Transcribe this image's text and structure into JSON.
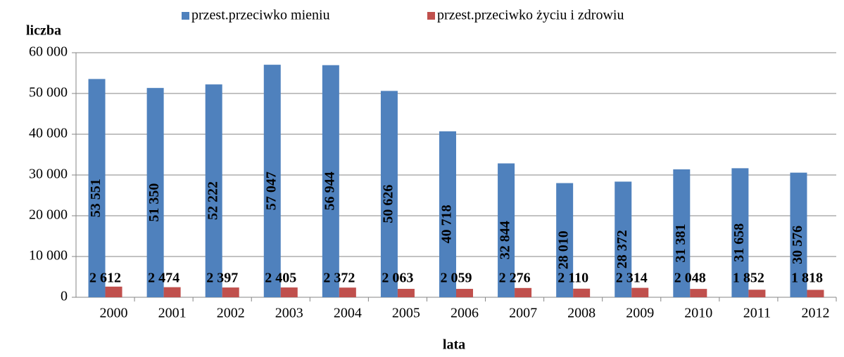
{
  "chart_data": {
    "type": "bar",
    "y_label": "liczba",
    "x_label": "lata",
    "categories": [
      "2000",
      "2001",
      "2002",
      "2003",
      "2004",
      "2005",
      "2006",
      "2007",
      "2008",
      "2009",
      "2010",
      "2011",
      "2012"
    ],
    "series": [
      {
        "name": "przest.przeciwko mieniu",
        "color": "#4f81bd",
        "values": [
          53551,
          51350,
          52222,
          57047,
          56944,
          50626,
          40718,
          32844,
          28010,
          28372,
          31381,
          31658,
          30576
        ],
        "value_labels": [
          "53 551",
          "51 350",
          "52 222",
          "57 047",
          "56 944",
          "50 626",
          "40 718",
          "32 844",
          "28 010",
          "28 372",
          "31 381",
          "31 658",
          "30 576"
        ]
      },
      {
        "name": "przest.przeciwko życiu i zdrowiu",
        "color": "#c0504d",
        "values": [
          2612,
          2474,
          2397,
          2405,
          2372,
          2063,
          2059,
          2276,
          2110,
          2314,
          2048,
          1852,
          1818
        ],
        "value_labels": [
          "2 612",
          "2 474",
          "2 397",
          "2 405",
          "2 372",
          "2 063",
          "2 059",
          "2 276",
          "2 110",
          "2 314",
          "2 048",
          "1 852",
          "1 818"
        ]
      }
    ],
    "ylim": [
      0,
      60000
    ],
    "yticks": [
      0,
      {
        "value": 10000,
        "label": "10 000"
      },
      {
        "value": 20000,
        "label": "20 000"
      },
      {
        "value": 30000,
        "label": "30 000"
      },
      {
        "value": 40000,
        "label": "40 000"
      },
      {
        "value": 50000,
        "label": "50 000"
      },
      {
        "value": 60000,
        "label": "60 000"
      }
    ],
    "grid": true,
    "legend": "top"
  }
}
